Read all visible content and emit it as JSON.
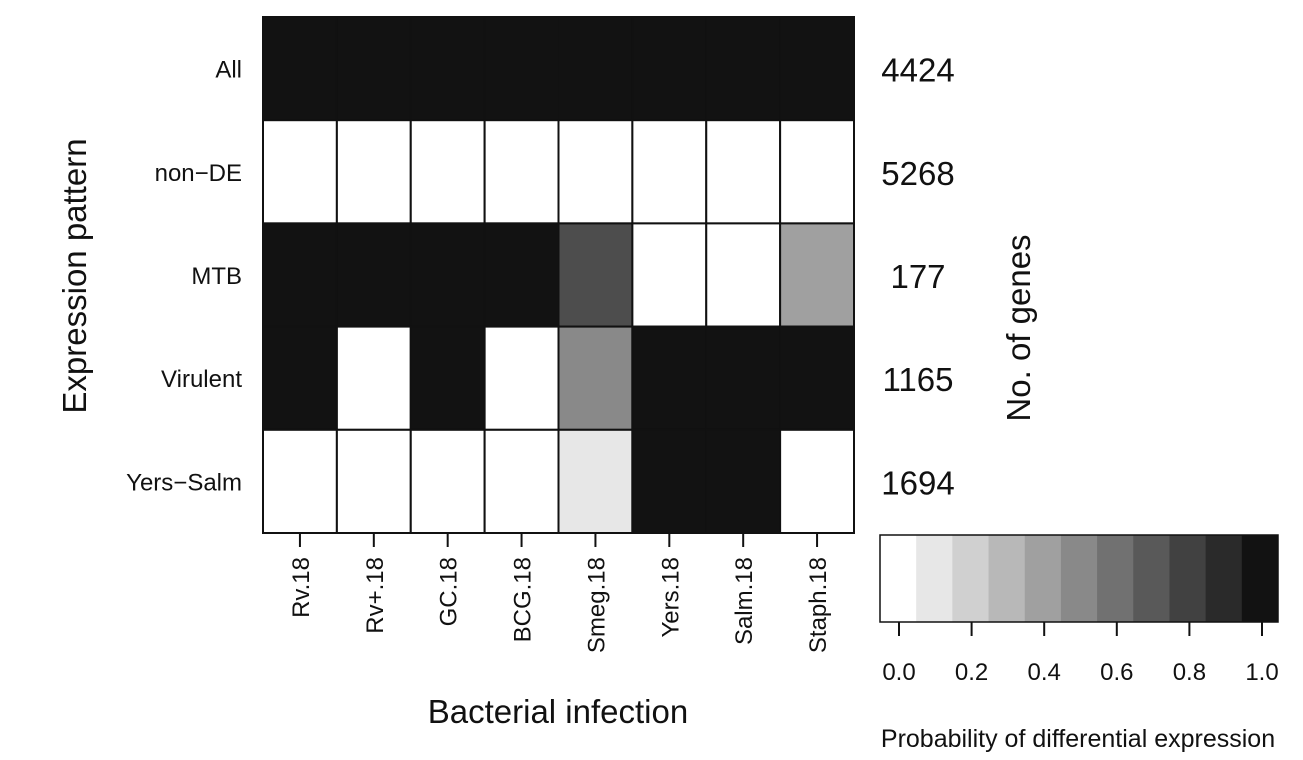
{
  "chart_data": {
    "type": "heatmap",
    "xlabel": "Bacterial infection",
    "ylabel": "Expression pattern",
    "right_axis_label": "No. of genes",
    "columns": [
      "Rv.18",
      "Rv+.18",
      "GC.18",
      "BCG.18",
      "Smeg.18",
      "Yers.18",
      "Salm.18",
      "Staph.18"
    ],
    "rows": [
      "All",
      "non−DE",
      "MTB",
      "Virulent",
      "Yers−Salm"
    ],
    "row_counts": [
      "4424",
      "5268",
      "177",
      "1165",
      "1694"
    ],
    "values": [
      [
        1.0,
        1.0,
        1.0,
        1.0,
        1.0,
        1.0,
        1.0,
        1.0
      ],
      [
        0.0,
        0.0,
        0.0,
        0.0,
        0.0,
        0.0,
        0.0,
        0.0
      ],
      [
        1.0,
        1.0,
        1.0,
        1.0,
        0.75,
        0.0,
        0.0,
        0.4
      ],
      [
        1.0,
        0.0,
        1.0,
        0.0,
        0.5,
        1.0,
        1.0,
        1.0
      ],
      [
        0.0,
        0.0,
        0.0,
        0.0,
        0.1,
        1.0,
        1.0,
        0.0
      ]
    ],
    "colorbar": {
      "title": "Probability of differential expression",
      "range": [
        0,
        1
      ],
      "bins": 11,
      "tick_labels": [
        "0.0",
        "0.2",
        "0.4",
        "0.6",
        "0.8",
        "1.0"
      ],
      "tick_values": [
        0,
        0.2,
        0.4,
        0.6,
        0.8,
        1.0
      ]
    }
  }
}
